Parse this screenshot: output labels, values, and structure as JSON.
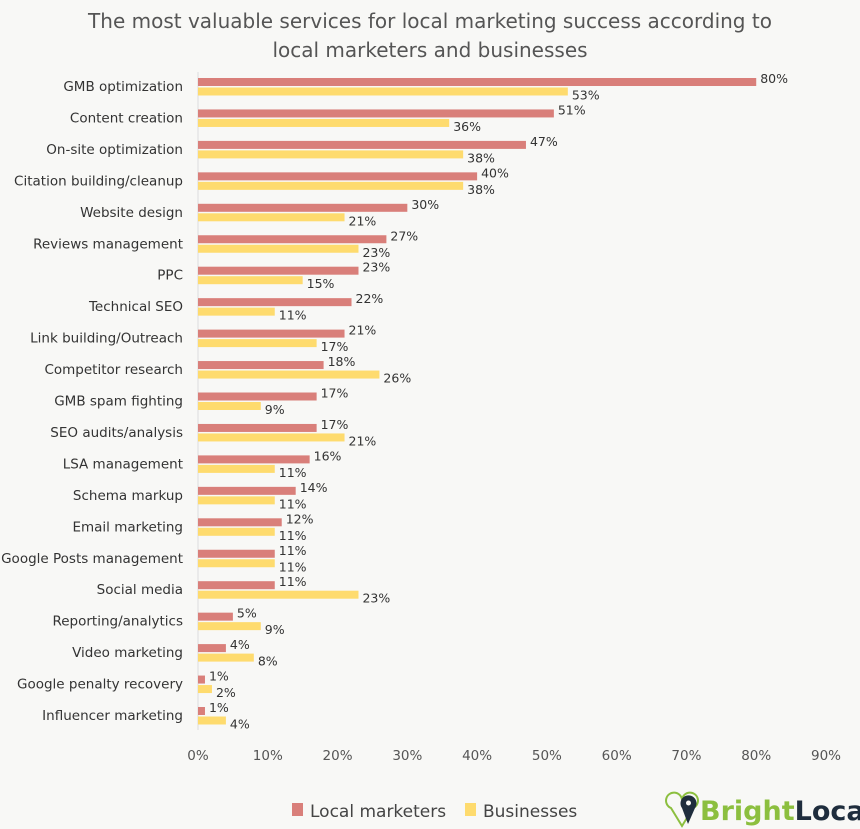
{
  "chart_data": {
    "type": "bar",
    "orientation": "horizontal",
    "title": "The most valuable services for local marketing success according to local marketers and businesses",
    "title_lines": [
      "The most valuable services for local marketing success according to",
      "local marketers and businesses"
    ],
    "categories": [
      "GMB optimization",
      "Content creation",
      "On-site optimization",
      "Citation building/cleanup",
      "Website design",
      "Reviews management",
      "PPC",
      "Technical SEO",
      "Link building/Outreach",
      "Competitor research",
      "GMB spam fighting",
      "SEO audits/analysis",
      "LSA management",
      "Schema markup",
      "Email marketing",
      "Google Posts management",
      "Social media",
      "Reporting/analytics",
      "Video marketing",
      "Google penalty recovery",
      "Influencer marketing"
    ],
    "series": [
      {
        "name": "Local marketers",
        "color": "#d97f7a",
        "values": [
          80,
          51,
          47,
          40,
          30,
          27,
          23,
          22,
          21,
          18,
          17,
          17,
          16,
          14,
          12,
          11,
          11,
          5,
          4,
          1,
          1
        ]
      },
      {
        "name": "Businesses",
        "color": "#fedb6e",
        "values": [
          53,
          36,
          38,
          38,
          21,
          23,
          15,
          11,
          17,
          26,
          9,
          21,
          11,
          11,
          11,
          11,
          23,
          9,
          8,
          2,
          4
        ]
      }
    ],
    "xlim": [
      0,
      90
    ],
    "xticks": [
      "0%",
      "10%",
      "20%",
      "30%",
      "40%",
      "50%",
      "60%",
      "70%",
      "80%",
      "90%"
    ],
    "value_suffix": "%",
    "grid": false,
    "legend_position": "bottom"
  },
  "logo": {
    "text_bright": "Bright",
    "text_local": "Local",
    "bright_color": "#8cbf3f",
    "local_color": "#1f2d3d"
  }
}
